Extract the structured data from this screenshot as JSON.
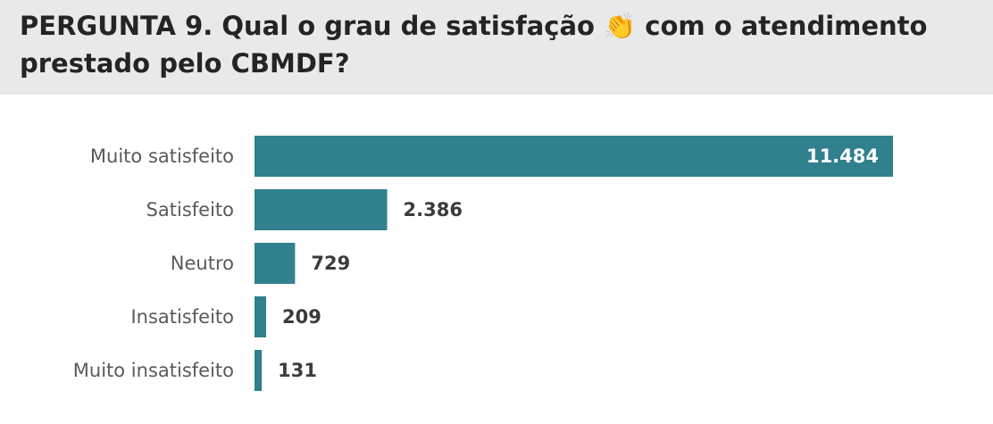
{
  "chart_data": {
    "type": "bar",
    "orientation": "horizontal",
    "title": "PERGUNTA 9. Qual o grau de satisfação 👏 com o atendimento prestado pelo CBMDF?",
    "categories": [
      "Muito satisfeito",
      "Satisfeito",
      "Neutro",
      "Insatisfeito",
      "Muito insatisfeito"
    ],
    "values": [
      11484,
      2386,
      729,
      209,
      131
    ],
    "value_labels": [
      "11.484",
      "2.386",
      "729",
      "209",
      "131"
    ],
    "color": "#31808e"
  }
}
